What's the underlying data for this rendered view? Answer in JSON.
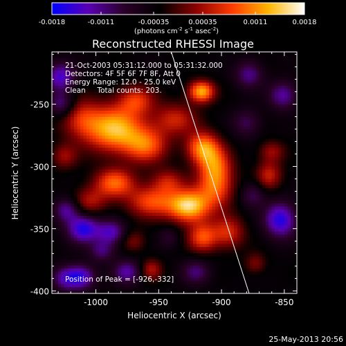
{
  "chart_data": {
    "type": "heatmap",
    "title": "Reconstructed RHESSI Image",
    "xlabel": "Heliocentric X (arcsec)",
    "ylabel": "Heliocentric Y (arcsec)",
    "xlim": [
      -1035,
      -840
    ],
    "ylim": [
      -402,
      -208
    ],
    "xticks": [
      -1000,
      -950,
      -900,
      -850
    ],
    "xtick_labels": [
      "-1000",
      "-950",
      "-900",
      "-850"
    ],
    "yticks": [
      -250,
      -300,
      -350,
      -400
    ],
    "ytick_labels": [
      "-250",
      "-300",
      "-350",
      "-400"
    ],
    "colorbar": {
      "range": [
        -0.0018,
        0.0018
      ],
      "ticks": [
        -0.0018,
        -0.0011,
        -0.00035,
        0.00035,
        0.0011,
        0.0018
      ],
      "tick_labels": [
        "-0.0018",
        "-0.0011",
        "-0.00035",
        "0.00035",
        "0.0011",
        "0.0018"
      ],
      "unit_label": "(photons cm",
      "unit_exp1": "-2",
      "unit_mid": " s",
      "unit_exp2": "-1",
      "unit_mid2": " asec",
      "unit_exp3": "-2",
      "unit_end": ")",
      "colors": [
        "#0000ff",
        "#5a00b4",
        "#2a0028",
        "#000000",
        "#8c0000",
        "#ff3c00",
        "#ffb400",
        "#ffffff"
      ]
    },
    "annotations": [
      "21-Oct-2003 05:31:12.000 to 05:31:32.000",
      "Detectors: 4F 5F 6F 7F 8F, Att 0",
      "Energy Range: 12.0 - 25.0 keV",
      "Clean     Total counts: 203."
    ],
    "peak_label": "Position of Peak = [-926,-332]",
    "peak": [
      -926,
      -332
    ],
    "limb_line": [
      [
        -940,
        -208
      ],
      [
        -878,
        -402
      ]
    ],
    "sources": [
      {
        "x": -985,
        "y": -270,
        "amp": 0.00165,
        "sx": 16,
        "sy": 13
      },
      {
        "x": -1012,
        "y": -262,
        "amp": 0.0008,
        "sx": 11,
        "sy": 11
      },
      {
        "x": -968,
        "y": -247,
        "amp": 0.0009,
        "sx": 10,
        "sy": 8
      },
      {
        "x": -985,
        "y": -313,
        "amp": 0.0012,
        "sx": 11,
        "sy": 8
      },
      {
        "x": -1005,
        "y": -328,
        "amp": 0.0007,
        "sx": 10,
        "sy": 8
      },
      {
        "x": -960,
        "y": -283,
        "amp": 0.0011,
        "sx": 12,
        "sy": 10
      },
      {
        "x": -937,
        "y": -262,
        "amp": 0.0008,
        "sx": 12,
        "sy": 9
      },
      {
        "x": -915,
        "y": -285,
        "amp": 0.0014,
        "sx": 9,
        "sy": 9
      },
      {
        "x": -905,
        "y": -298,
        "amp": 0.0009,
        "sx": 9,
        "sy": 10
      },
      {
        "x": -916,
        "y": -240,
        "amp": 0.0016,
        "sx": 7,
        "sy": 6
      },
      {
        "x": -926,
        "y": -332,
        "amp": 0.0018,
        "sx": 11,
        "sy": 9
      },
      {
        "x": -905,
        "y": -316,
        "amp": 0.0012,
        "sx": 10,
        "sy": 12
      },
      {
        "x": -955,
        "y": -328,
        "amp": 0.0011,
        "sx": 14,
        "sy": 9
      },
      {
        "x": -943,
        "y": -312,
        "amp": 0.0007,
        "sx": 9,
        "sy": 7
      },
      {
        "x": -915,
        "y": -357,
        "amp": 0.0011,
        "sx": 8,
        "sy": 8
      },
      {
        "x": -895,
        "y": -353,
        "amp": 0.0009,
        "sx": 9,
        "sy": 9
      },
      {
        "x": -956,
        "y": -383,
        "amp": 0.0007,
        "sx": 6,
        "sy": 6
      },
      {
        "x": -862,
        "y": -307,
        "amp": 0.0008,
        "sx": 7,
        "sy": 8
      },
      {
        "x": -1025,
        "y": -292,
        "amp": 0.0006,
        "sx": 7,
        "sy": 7
      },
      {
        "x": -860,
        "y": -288,
        "amp": 0.0006,
        "sx": 7,
        "sy": 6
      },
      {
        "x": -970,
        "y": -360,
        "amp": 0.0005,
        "sx": 7,
        "sy": 6
      },
      {
        "x": -873,
        "y": -378,
        "amp": 0.0005,
        "sx": 6,
        "sy": 6
      },
      {
        "x": -1010,
        "y": -350,
        "amp": -0.0013,
        "sx": 9,
        "sy": 8
      },
      {
        "x": -988,
        "y": -353,
        "amp": -0.001,
        "sx": 8,
        "sy": 7
      },
      {
        "x": -1023,
        "y": -335,
        "amp": -0.0009,
        "sx": 7,
        "sy": 7
      },
      {
        "x": -1028,
        "y": -228,
        "amp": -0.0011,
        "sx": 8,
        "sy": 8
      },
      {
        "x": -1027,
        "y": -250,
        "amp": -0.0008,
        "sx": 7,
        "sy": 7
      },
      {
        "x": -1012,
        "y": -389,
        "amp": -0.0012,
        "sx": 8,
        "sy": 7
      },
      {
        "x": -975,
        "y": -385,
        "amp": -0.0009,
        "sx": 8,
        "sy": 7
      },
      {
        "x": -995,
        "y": -368,
        "amp": -0.0007,
        "sx": 7,
        "sy": 6
      },
      {
        "x": -853,
        "y": -343,
        "amp": -0.0013,
        "sx": 9,
        "sy": 10
      },
      {
        "x": -851,
        "y": -243,
        "amp": -0.0009,
        "sx": 8,
        "sy": 8
      },
      {
        "x": -878,
        "y": -226,
        "amp": -0.0008,
        "sx": 8,
        "sy": 8
      },
      {
        "x": -880,
        "y": -265,
        "amp": -0.0006,
        "sx": 8,
        "sy": 8
      },
      {
        "x": -920,
        "y": -385,
        "amp": -0.0007,
        "sx": 8,
        "sy": 7
      },
      {
        "x": -875,
        "y": -323,
        "amp": -0.0006,
        "sx": 7,
        "sy": 7
      },
      {
        "x": -1025,
        "y": -390,
        "amp": -0.0008,
        "sx": 7,
        "sy": 7
      },
      {
        "x": -942,
        "y": -357,
        "amp": -0.0004,
        "sx": 6,
        "sy": 6
      }
    ]
  },
  "footer": {
    "timestamp": "25-May-2013 20:56"
  }
}
